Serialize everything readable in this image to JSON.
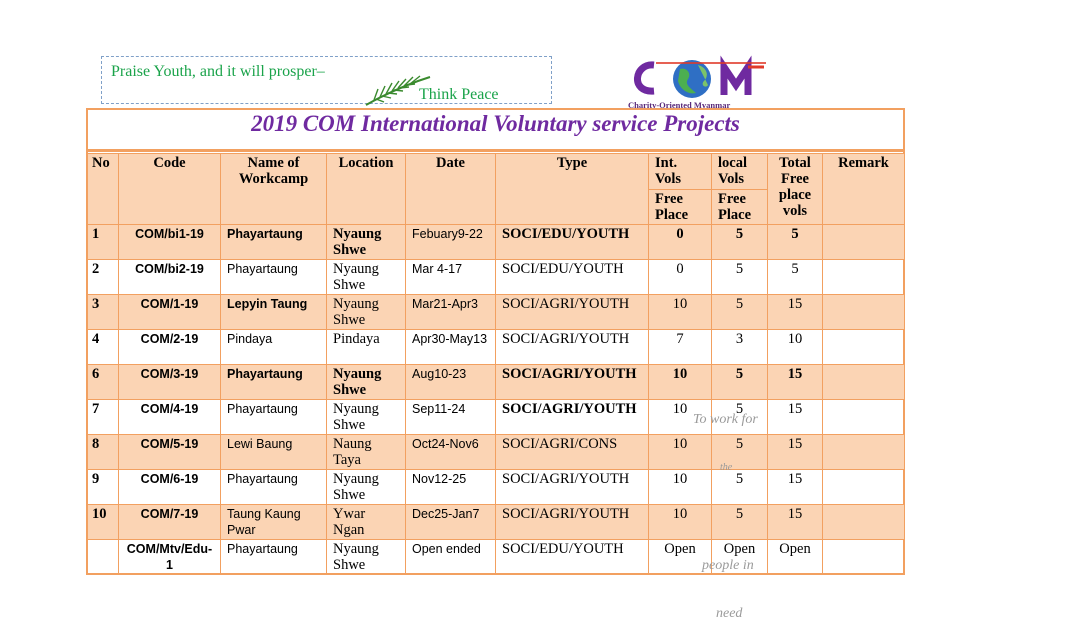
{
  "slogan": {
    "line1": "Praise Youth, and it will prosper–",
    "line2": "Think Peace"
  },
  "logo": {
    "tagline": "Charity-Oriented Myanmar"
  },
  "title": "2019 COM International Voluntary service Projects",
  "headers": {
    "no": "No",
    "code": "Code",
    "name": "Name of Workcamp",
    "location": "Location",
    "date": "Date",
    "type": "Type",
    "int": "Int. Vols",
    "local": "local Vols",
    "free_place": "Free Place",
    "total": "Total Free place vols",
    "remark": "Remark"
  },
  "rows": [
    {
      "no": "1",
      "code": "COM/bi1-19",
      "name": "Phayartaung",
      "location": "Nyaung Shwe",
      "date": "Febuary9-22",
      "type": "SOCI/EDU/YOUTH",
      "int": "0",
      "local": "5",
      "total": "5",
      "remark": ""
    },
    {
      "no": "2",
      "code": "COM/bi2-19",
      "name": "Phayartaung",
      "location": "Nyaung Shwe",
      "date": "Mar 4-17",
      "type": "SOCI/EDU/YOUTH",
      "int": "0",
      "local": "5",
      "total": "5",
      "remark": ""
    },
    {
      "no": "3",
      "code": "COM/1-19",
      "name": "Lepyin Taung",
      "location": "Nyaung Shwe",
      "date": "Mar21-Apr3",
      "type": "SOCI/AGRI/YOUTH",
      "int": "10",
      "local": "5",
      "total": "15",
      "remark": ""
    },
    {
      "no": "4",
      "code": "COM/2-19",
      "name": "Pindaya",
      "location": "Pindaya",
      "date": "Apr30-May13",
      "type": "SOCI/AGRI/YOUTH",
      "int": "7",
      "local": "3",
      "total": "10",
      "remark": ""
    },
    {
      "no": "6",
      "code": "COM/3-19",
      "name": "Phayartaung",
      "location": "Nyaung Shwe",
      "date": "Aug10-23",
      "type": "SOCI/AGRI/YOUTH",
      "int": "10",
      "local": "5",
      "total": "15",
      "remark": ""
    },
    {
      "no": "7",
      "code": "COM/4-19",
      "name": "Phayartaung",
      "location": "Nyaung Shwe",
      "date": "Sep11-24",
      "type": "SOCI/AGRI/YOUTH",
      "int": "10",
      "local": "5",
      "total": "15",
      "remark": ""
    },
    {
      "no": "8",
      "code": "COM/5-19",
      "name": "Lewi Baung",
      "location": "Naung Taya",
      "date": "Oct24-Nov6",
      "type": "SOCI/AGRI/CONS",
      "int": "10",
      "local": "5",
      "total": "15",
      "remark": ""
    },
    {
      "no": "9",
      "code": "COM/6-19",
      "name": "Phayartaung",
      "location": "Nyaung Shwe",
      "date": "Nov12-25",
      "type": "SOCI/AGRI/YOUTH",
      "int": "10",
      "local": "5",
      "total": "15",
      "remark": ""
    },
    {
      "no": "10",
      "code": "COM/7-19",
      "name": "Taung Kaung Pwar",
      "location": "Ywar Ngan",
      "date": "Dec25-Jan7",
      "type": "SOCI/AGRI/YOUTH",
      "int": "10",
      "local": "5",
      "total": "15",
      "remark": ""
    },
    {
      "no": "",
      "code": "COM/Mtv/Edu-1",
      "name": "Phayartaung",
      "location": "Nyaung Shwe",
      "date": "Open ended",
      "type": "SOCI/EDU/YOUTH",
      "int": "Open",
      "local": "Open",
      "total": "Open",
      "remark": ""
    }
  ],
  "overlay_text": {
    "a": "To work for",
    "b": "the",
    "c": "people in",
    "d": "need"
  }
}
